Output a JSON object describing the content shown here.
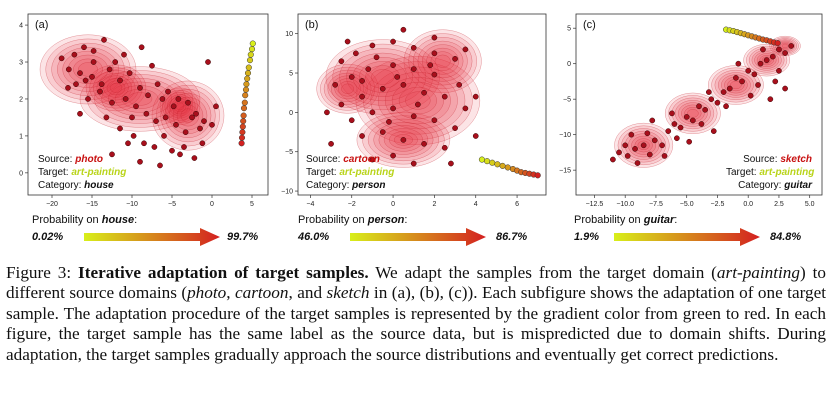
{
  "figure": {
    "panels": [
      {
        "label": "(a)",
        "info": {
          "source_prefix": "Source: ",
          "source": "photo",
          "target_prefix": "Target: ",
          "target": "art-painting",
          "category_prefix": "Category: ",
          "category": "house",
          "position": "bottom-left"
        },
        "probability": {
          "prefix": "Probability on ",
          "category": "house",
          "suffix": ":",
          "start": "0.02%",
          "end": "99.7%"
        }
      },
      {
        "label": "(b)",
        "info": {
          "source_prefix": "Source: ",
          "source": "cartoon",
          "target_prefix": "Target: ",
          "target": "art-painting",
          "category_prefix": "Category: ",
          "category": "person",
          "position": "bottom-left"
        },
        "probability": {
          "prefix": "Probability on ",
          "category": "person",
          "suffix": ":",
          "start": "46.0%",
          "end": "86.7%"
        }
      },
      {
        "label": "(c)",
        "info": {
          "source_prefix": "Source: ",
          "source": "sketch",
          "target_prefix": "Target: ",
          "target": "art-painting",
          "category_prefix": "Category: ",
          "category": "guitar",
          "position": "bottom-right"
        },
        "probability": {
          "prefix": "Probability on ",
          "category": "guitar",
          "suffix": ":",
          "start": "1.9%",
          "end": "84.8%"
        }
      }
    ],
    "gradient_colors": {
      "start": "#d8ef1a",
      "end": "#d42020"
    },
    "density_color": "#e8323c",
    "source_point_color": "#a80f1c"
  },
  "chart_data": [
    {
      "type": "scatter",
      "title": "(a)",
      "xticks": [
        "−20",
        "−15",
        "−10",
        "−5",
        "0",
        "5"
      ],
      "yticks": [
        "0",
        "1",
        "2",
        "3",
        "4"
      ],
      "xlim": [
        -23,
        7
      ],
      "ylim": [
        -0.6,
        4.3
      ],
      "density_blobs": [
        {
          "x": -15.5,
          "y": 2.8,
          "sx": 4.8,
          "sy": 0.75
        },
        {
          "x": -9,
          "y": 2.0,
          "sx": 6,
          "sy": 0.7
        },
        {
          "x": -3,
          "y": 1.55,
          "sx": 3.6,
          "sy": 0.75
        },
        {
          "x": -12,
          "y": 2.3,
          "sx": 3.0,
          "sy": 0.5
        },
        {
          "x": -4,
          "y": 1.8,
          "sx": 2.0,
          "sy": 0.4
        }
      ],
      "source_points": [
        [
          -18.8,
          3.1
        ],
        [
          -17.2,
          3.2
        ],
        [
          -16,
          3.4
        ],
        [
          -14.8,
          3.3
        ],
        [
          -13.5,
          3.6
        ],
        [
          -12.1,
          3.0
        ],
        [
          -11,
          3.2
        ],
        [
          -17.9,
          2.8
        ],
        [
          -16.5,
          2.7
        ],
        [
          -15,
          2.6
        ],
        [
          -13.8,
          2.4
        ],
        [
          -12.8,
          2.8
        ],
        [
          -11.5,
          2.5
        ],
        [
          -10.3,
          2.7
        ],
        [
          -9,
          2.3
        ],
        [
          -8,
          2.1
        ],
        [
          -6.8,
          2.4
        ],
        [
          -5.5,
          2.2
        ],
        [
          -4.2,
          2.0
        ],
        [
          -3,
          1.9
        ],
        [
          -2,
          1.6
        ],
        [
          -1,
          1.4
        ],
        [
          0,
          1.3
        ],
        [
          -15.5,
          2.0
        ],
        [
          -14,
          2.2
        ],
        [
          -12.5,
          1.9
        ],
        [
          -10.8,
          2.0
        ],
        [
          -9.5,
          1.8
        ],
        [
          -8.2,
          1.6
        ],
        [
          -7,
          1.4
        ],
        [
          -5.8,
          1.5
        ],
        [
          -4.5,
          1.3
        ],
        [
          -3.3,
          1.1
        ],
        [
          -2.5,
          1.5
        ],
        [
          -1.5,
          1.2
        ],
        [
          -11.5,
          1.2
        ],
        [
          -9.8,
          1.0
        ],
        [
          -8.5,
          0.8
        ],
        [
          -7.2,
          0.7
        ],
        [
          -5,
          0.6
        ],
        [
          -4,
          0.5
        ],
        [
          -16.5,
          1.6
        ],
        [
          -18,
          2.3
        ],
        [
          -13.2,
          1.5
        ],
        [
          -6,
          1.0
        ],
        [
          -1.2,
          0.8
        ],
        [
          -3.5,
          0.7
        ],
        [
          -10,
          1.5
        ],
        [
          0.5,
          1.8
        ],
        [
          -14.8,
          3.0
        ],
        [
          -8.8,
          3.4
        ],
        [
          -7.5,
          2.9
        ],
        [
          -0.5,
          3.0
        ],
        [
          -12.5,
          0.5
        ],
        [
          -9,
          0.3
        ],
        [
          -6.5,
          0.2
        ],
        [
          -2.2,
          0.4
        ],
        [
          -10.5,
          0.8
        ],
        [
          -17,
          2.4
        ],
        [
          -15.8,
          2.5
        ],
        [
          -6.2,
          2.0
        ],
        [
          -4.8,
          1.8
        ]
      ],
      "trajectory": [
        [
          5.1,
          3.5
        ],
        [
          5.0,
          3.35
        ],
        [
          4.85,
          3.2
        ],
        [
          4.75,
          3.05
        ],
        [
          4.6,
          2.85
        ],
        [
          4.5,
          2.7
        ],
        [
          4.4,
          2.55
        ],
        [
          4.3,
          2.4
        ],
        [
          4.25,
          2.25
        ],
        [
          4.15,
          2.1
        ],
        [
          4.1,
          1.9
        ],
        [
          4.0,
          1.75
        ],
        [
          3.95,
          1.55
        ],
        [
          3.9,
          1.4
        ],
        [
          3.85,
          1.25
        ],
        [
          3.8,
          1.1
        ],
        [
          3.75,
          0.95
        ],
        [
          3.7,
          0.8
        ]
      ]
    },
    {
      "type": "scatter",
      "title": "(b)",
      "xticks": [
        "−4",
        "−2",
        "0",
        "2",
        "4",
        "6"
      ],
      "yticks": [
        "−10",
        "−5",
        "0",
        "5",
        "10"
      ],
      "xlim": [
        -4.6,
        7.4
      ],
      "ylim": [
        -10.5,
        12.5
      ],
      "density_blobs": [
        {
          "x": -0.5,
          "y": 4.5,
          "sx": 2.2,
          "sy": 3.8
        },
        {
          "x": 1.2,
          "y": 1.5,
          "sx": 2.4,
          "sy": 4.5
        },
        {
          "x": 2.4,
          "y": 6.5,
          "sx": 1.5,
          "sy": 3.2
        },
        {
          "x": 0.5,
          "y": -3.5,
          "sx": 1.8,
          "sy": 2.8
        },
        {
          "x": -2.2,
          "y": 3.0,
          "sx": 1.2,
          "sy": 2.5
        }
      ],
      "source_points": [
        [
          -2.5,
          6.5
        ],
        [
          -1.8,
          7.5
        ],
        [
          -1,
          8.5
        ],
        [
          0,
          9
        ],
        [
          1,
          8.2
        ],
        [
          2,
          7.5
        ],
        [
          3,
          6.8
        ],
        [
          -2.8,
          3.5
        ],
        [
          -2,
          4.5
        ],
        [
          -1.2,
          5.5
        ],
        [
          0,
          6
        ],
        [
          1,
          5.5
        ],
        [
          2,
          4.8
        ],
        [
          3.2,
          3.5
        ],
        [
          -2.5,
          1
        ],
        [
          -1.5,
          2
        ],
        [
          -0.5,
          3
        ],
        [
          0.5,
          3.5
        ],
        [
          1.5,
          2.5
        ],
        [
          2.5,
          2
        ],
        [
          3.5,
          0.5
        ],
        [
          -2,
          -1
        ],
        [
          -1,
          0
        ],
        [
          0,
          0.5
        ],
        [
          1,
          -0.5
        ],
        [
          2,
          -1
        ],
        [
          3,
          -2
        ],
        [
          -1.5,
          -3
        ],
        [
          -0.5,
          -2.5
        ],
        [
          0.5,
          -3.5
        ],
        [
          1.5,
          -4
        ],
        [
          2.5,
          -4.5
        ],
        [
          0,
          -5.5
        ],
        [
          1,
          -6.5
        ],
        [
          -1,
          -6
        ],
        [
          -3.2,
          0
        ],
        [
          4,
          2
        ],
        [
          4,
          -3
        ],
        [
          -3,
          -4
        ],
        [
          2,
          9.5
        ],
        [
          -2.2,
          9
        ],
        [
          0.5,
          10.5
        ],
        [
          3.5,
          8
        ],
        [
          1.2,
          1
        ],
        [
          -0.2,
          -1.2
        ],
        [
          2.8,
          -6.5
        ],
        [
          -0.8,
          7
        ],
        [
          1.8,
          6
        ],
        [
          0.2,
          4.5
        ],
        [
          -1.5,
          4
        ]
      ],
      "trajectory": [
        [
          4.3,
          -6.0
        ],
        [
          4.55,
          -6.2
        ],
        [
          4.8,
          -6.4
        ],
        [
          5.05,
          -6.6
        ],
        [
          5.3,
          -6.8
        ],
        [
          5.55,
          -7.0
        ],
        [
          5.8,
          -7.2
        ],
        [
          6.0,
          -7.4
        ],
        [
          6.2,
          -7.6
        ],
        [
          6.4,
          -7.7
        ],
        [
          6.6,
          -7.8
        ],
        [
          6.8,
          -7.9
        ],
        [
          7.0,
          -8.0
        ]
      ]
    },
    {
      "type": "scatter",
      "title": "(c)",
      "xticks": [
        "−12.5",
        "−10.0",
        "−7.5",
        "−5.0",
        "−2.5",
        "0.0",
        "2.5",
        "5.0"
      ],
      "yticks": [
        "−15",
        "−10",
        "−5",
        "0",
        "5"
      ],
      "xlim": [
        -14,
        6
      ],
      "ylim": [
        -18.5,
        7
      ],
      "density_blobs": [
        {
          "x": -8.5,
          "y": -11.5,
          "sx": 1.9,
          "sy": 2.5
        },
        {
          "x": -4.5,
          "y": -7,
          "sx": 1.8,
          "sy": 2.3
        },
        {
          "x": -1,
          "y": -3,
          "sx": 1.8,
          "sy": 2.2
        },
        {
          "x": 1.5,
          "y": 0.5,
          "sx": 1.5,
          "sy": 1.8
        },
        {
          "x": 3.0,
          "y": 2.5,
          "sx": 1.0,
          "sy": 1.1
        }
      ],
      "source_points": [
        [
          -10.5,
          -12.5
        ],
        [
          -9.8,
          -13
        ],
        [
          -9.2,
          -12
        ],
        [
          -8.5,
          -11.5
        ],
        [
          -8,
          -12.8
        ],
        [
          -7.6,
          -10.8
        ],
        [
          -9,
          -14
        ],
        [
          -10,
          -11.5
        ],
        [
          -7,
          -11.5
        ],
        [
          -6.5,
          -9.5
        ],
        [
          -6,
          -8.5
        ],
        [
          -5.5,
          -9
        ],
        [
          -5,
          -7.5
        ],
        [
          -4.5,
          -8
        ],
        [
          -4,
          -6
        ],
        [
          -3.5,
          -6.5
        ],
        [
          -3,
          -5
        ],
        [
          -2.5,
          -5.5
        ],
        [
          -2,
          -4
        ],
        [
          -1.5,
          -3.5
        ],
        [
          -1,
          -2
        ],
        [
          -0.5,
          -2.5
        ],
        [
          0,
          -1
        ],
        [
          0.5,
          -1.5
        ],
        [
          1,
          0
        ],
        [
          1.5,
          0.5
        ],
        [
          2,
          1
        ],
        [
          2.5,
          2
        ],
        [
          3,
          1.5
        ],
        [
          3.5,
          2.5
        ],
        [
          -8.2,
          -9.8
        ],
        [
          -5.8,
          -10.5
        ],
        [
          -3.8,
          -8.5
        ],
        [
          -1.8,
          -6
        ],
        [
          0.8,
          -3
        ],
        [
          2.5,
          -1
        ],
        [
          -6.8,
          -13
        ],
        [
          -4.8,
          -11
        ],
        [
          -2.8,
          -9.5
        ],
        [
          0.2,
          -4.5
        ],
        [
          -9.5,
          -10
        ],
        [
          -7.8,
          -8
        ],
        [
          1.8,
          -5
        ],
        [
          3,
          -3.5
        ],
        [
          -11,
          -13.5
        ],
        [
          -6.2,
          -7
        ],
        [
          -3.2,
          -4
        ],
        [
          1.2,
          2
        ],
        [
          -0.8,
          0
        ],
        [
          2.2,
          -2.5
        ]
      ],
      "trajectory": [
        [
          -1.8,
          4.8
        ],
        [
          -1.5,
          4.7
        ],
        [
          -1.2,
          4.6
        ],
        [
          -0.9,
          4.45
        ],
        [
          -0.6,
          4.3
        ],
        [
          -0.3,
          4.15
        ],
        [
          0.0,
          4.0
        ],
        [
          0.3,
          3.85
        ],
        [
          0.6,
          3.7
        ],
        [
          0.9,
          3.55
        ],
        [
          1.2,
          3.4
        ],
        [
          1.5,
          3.3
        ],
        [
          1.8,
          3.15
        ],
        [
          2.1,
          3.0
        ],
        [
          2.4,
          2.9
        ]
      ]
    }
  ],
  "caption": {
    "label": "Figure 3: ",
    "title": "Iterative adaptation of target samples.",
    "s1": " We adapt the samples from the target domain (",
    "e1": "art-painting",
    "s2": ") to different source domains (",
    "e2": "photo",
    "s3": ", ",
    "e3": "cartoon",
    "s4": ", and ",
    "e4": "sketch",
    "s5": " in (a), (b), (c)). Each subfigure shows the adaptation of one target sample.  The adaptation procedure of the target samples is represented by the gradient color from green to red. In each figure, the target sample has the same label as the source data, but is mispredicted due to domain shifts.  During adaptation, the target samples gradually approach the source distributions and eventually get correct predictions."
  }
}
